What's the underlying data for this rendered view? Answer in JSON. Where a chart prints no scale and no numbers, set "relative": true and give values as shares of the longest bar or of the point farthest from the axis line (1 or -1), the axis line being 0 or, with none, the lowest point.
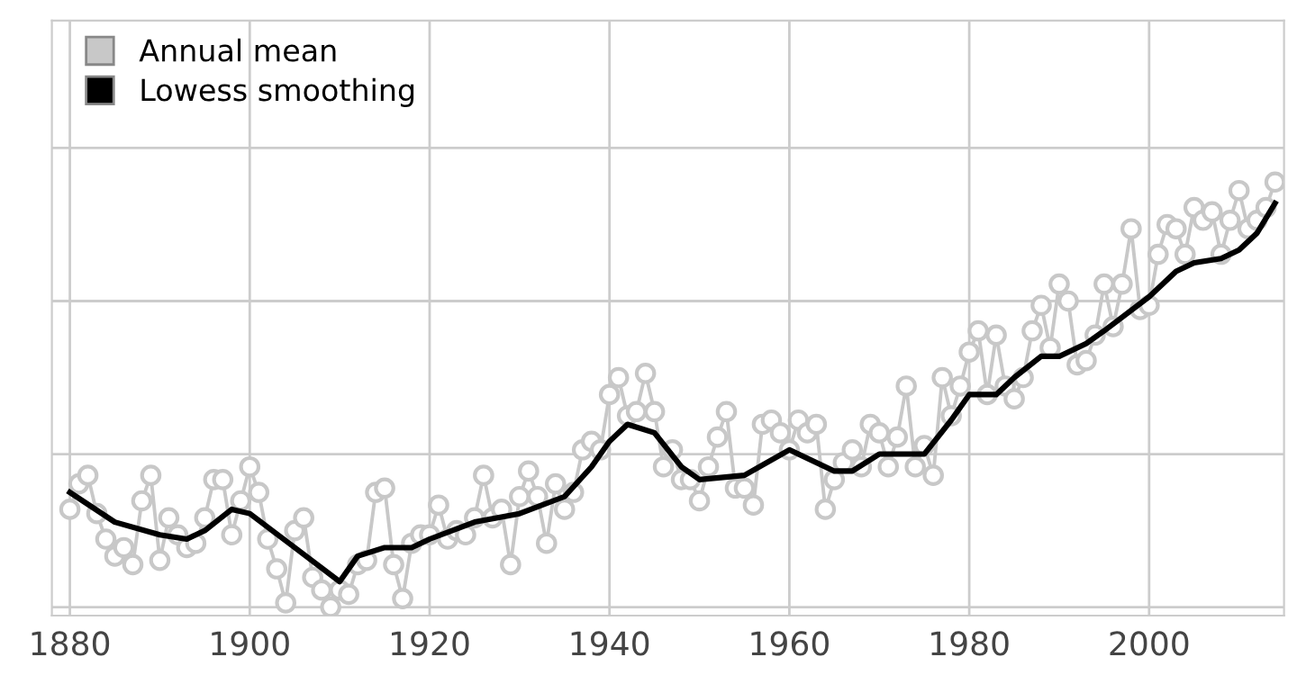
{
  "chart_data": {
    "type": "line",
    "relative": true,
    "grid": true,
    "legend": "top left",
    "xlim": [
      1878,
      2015
    ],
    "xticks": [
      1880,
      1900,
      1920,
      1940,
      1960,
      1980,
      2000
    ],
    "x": [
      1880,
      1881,
      1882,
      1883,
      1884,
      1885,
      1886,
      1887,
      1888,
      1889,
      1890,
      1891,
      1892,
      1893,
      1894,
      1895,
      1896,
      1897,
      1898,
      1899,
      1900,
      1901,
      1902,
      1903,
      1904,
      1905,
      1906,
      1907,
      1908,
      1909,
      1910,
      1911,
      1912,
      1913,
      1914,
      1915,
      1916,
      1917,
      1918,
      1919,
      1920,
      1921,
      1922,
      1923,
      1924,
      1925,
      1926,
      1927,
      1928,
      1929,
      1930,
      1931,
      1932,
      1933,
      1934,
      1935,
      1936,
      1937,
      1938,
      1939,
      1940,
      1941,
      1942,
      1943,
      1944,
      1945,
      1946,
      1947,
      1948,
      1949,
      1950,
      1951,
      1952,
      1953,
      1954,
      1955,
      1956,
      1957,
      1958,
      1959,
      1960,
      1961,
      1962,
      1963,
      1964,
      1965,
      1966,
      1967,
      1968,
      1969,
      1970,
      1971,
      1972,
      1973,
      1974,
      1975,
      1976,
      1977,
      1978,
      1979,
      1980,
      1981,
      1982,
      1983,
      1984,
      1985,
      1986,
      1987,
      1988,
      1989,
      1990,
      1991,
      1992,
      1993,
      1994,
      1995,
      1996,
      1997,
      1998,
      1999,
      2000,
      2001,
      2002,
      2003,
      2004,
      2005,
      2006,
      2007,
      2008,
      2009,
      2010,
      2011,
      2012,
      2013,
      2014
    ],
    "series": [
      {
        "name": "Annual mean",
        "color": "#c8c8c8",
        "marker": "circle",
        "values": [
          0.23,
          0.29,
          0.31,
          0.22,
          0.16,
          0.12,
          0.14,
          0.1,
          0.25,
          0.31,
          0.11,
          0.21,
          0.17,
          0.14,
          0.15,
          0.21,
          0.3,
          0.3,
          0.17,
          0.25,
          0.33,
          0.27,
          0.16,
          0.09,
          0.01,
          0.18,
          0.21,
          0.07,
          0.04,
          0,
          0.04,
          0.03,
          0.1,
          0.11,
          0.27,
          0.28,
          0.1,
          0.02,
          0.15,
          0.17,
          0.17,
          0.24,
          0.16,
          0.18,
          0.17,
          0.21,
          0.31,
          0.21,
          0.23,
          0.1,
          0.26,
          0.32,
          0.26,
          0.15,
          0.29,
          0.23,
          0.27,
          0.37,
          0.39,
          0.37,
          0.5,
          0.54,
          0.45,
          0.46,
          0.55,
          0.46,
          0.33,
          0.37,
          0.3,
          0.3,
          0.25,
          0.33,
          0.4,
          0.46,
          0.28,
          0.28,
          0.24,
          0.43,
          0.44,
          0.41,
          0.37,
          0.44,
          0.41,
          0.43,
          0.23,
          0.3,
          0.34,
          0.37,
          0.33,
          0.43,
          0.41,
          0.33,
          0.4,
          0.52,
          0.33,
          0.38,
          0.31,
          0.54,
          0.45,
          0.52,
          0.6,
          0.65,
          0.5,
          0.64,
          0.52,
          0.49,
          0.54,
          0.65,
          0.71,
          0.61,
          0.76,
          0.72,
          0.57,
          0.58,
          0.64,
          0.76,
          0.66,
          0.76,
          0.89,
          0.7,
          0.71,
          0.83,
          0.9,
          0.89,
          0.83,
          0.94,
          0.91,
          0.93,
          0.83,
          0.91,
          0.98,
          0.89,
          0.91,
          0.94,
          1
        ]
      },
      {
        "name": "Lowess smoothing",
        "color": "#000000",
        "marker": "none",
        "x": [
          1880,
          1885,
          1890,
          1893,
          1895,
          1898,
          1900,
          1905,
          1910,
          1912,
          1915,
          1918,
          1920,
          1925,
          1930,
          1935,
          1938,
          1940,
          1942,
          1945,
          1948,
          1950,
          1955,
          1960,
          1965,
          1967,
          1970,
          1975,
          1978,
          1980,
          1983,
          1985,
          1988,
          1990,
          1993,
          1995,
          2000,
          2003,
          2005,
          2008,
          2010,
          2012,
          2014
        ],
        "values": [
          0.27,
          0.2,
          0.17,
          0.16,
          0.18,
          0.23,
          0.22,
          0.14,
          0.06,
          0.12,
          0.14,
          0.14,
          0.16,
          0.2,
          0.22,
          0.26,
          0.33,
          0.39,
          0.43,
          0.41,
          0.33,
          0.3,
          0.31,
          0.37,
          0.32,
          0.32,
          0.36,
          0.36,
          0.44,
          0.5,
          0.5,
          0.54,
          0.59,
          0.59,
          0.62,
          0.65,
          0.73,
          0.79,
          0.81,
          0.82,
          0.84,
          0.88,
          0.95
        ]
      }
    ]
  }
}
